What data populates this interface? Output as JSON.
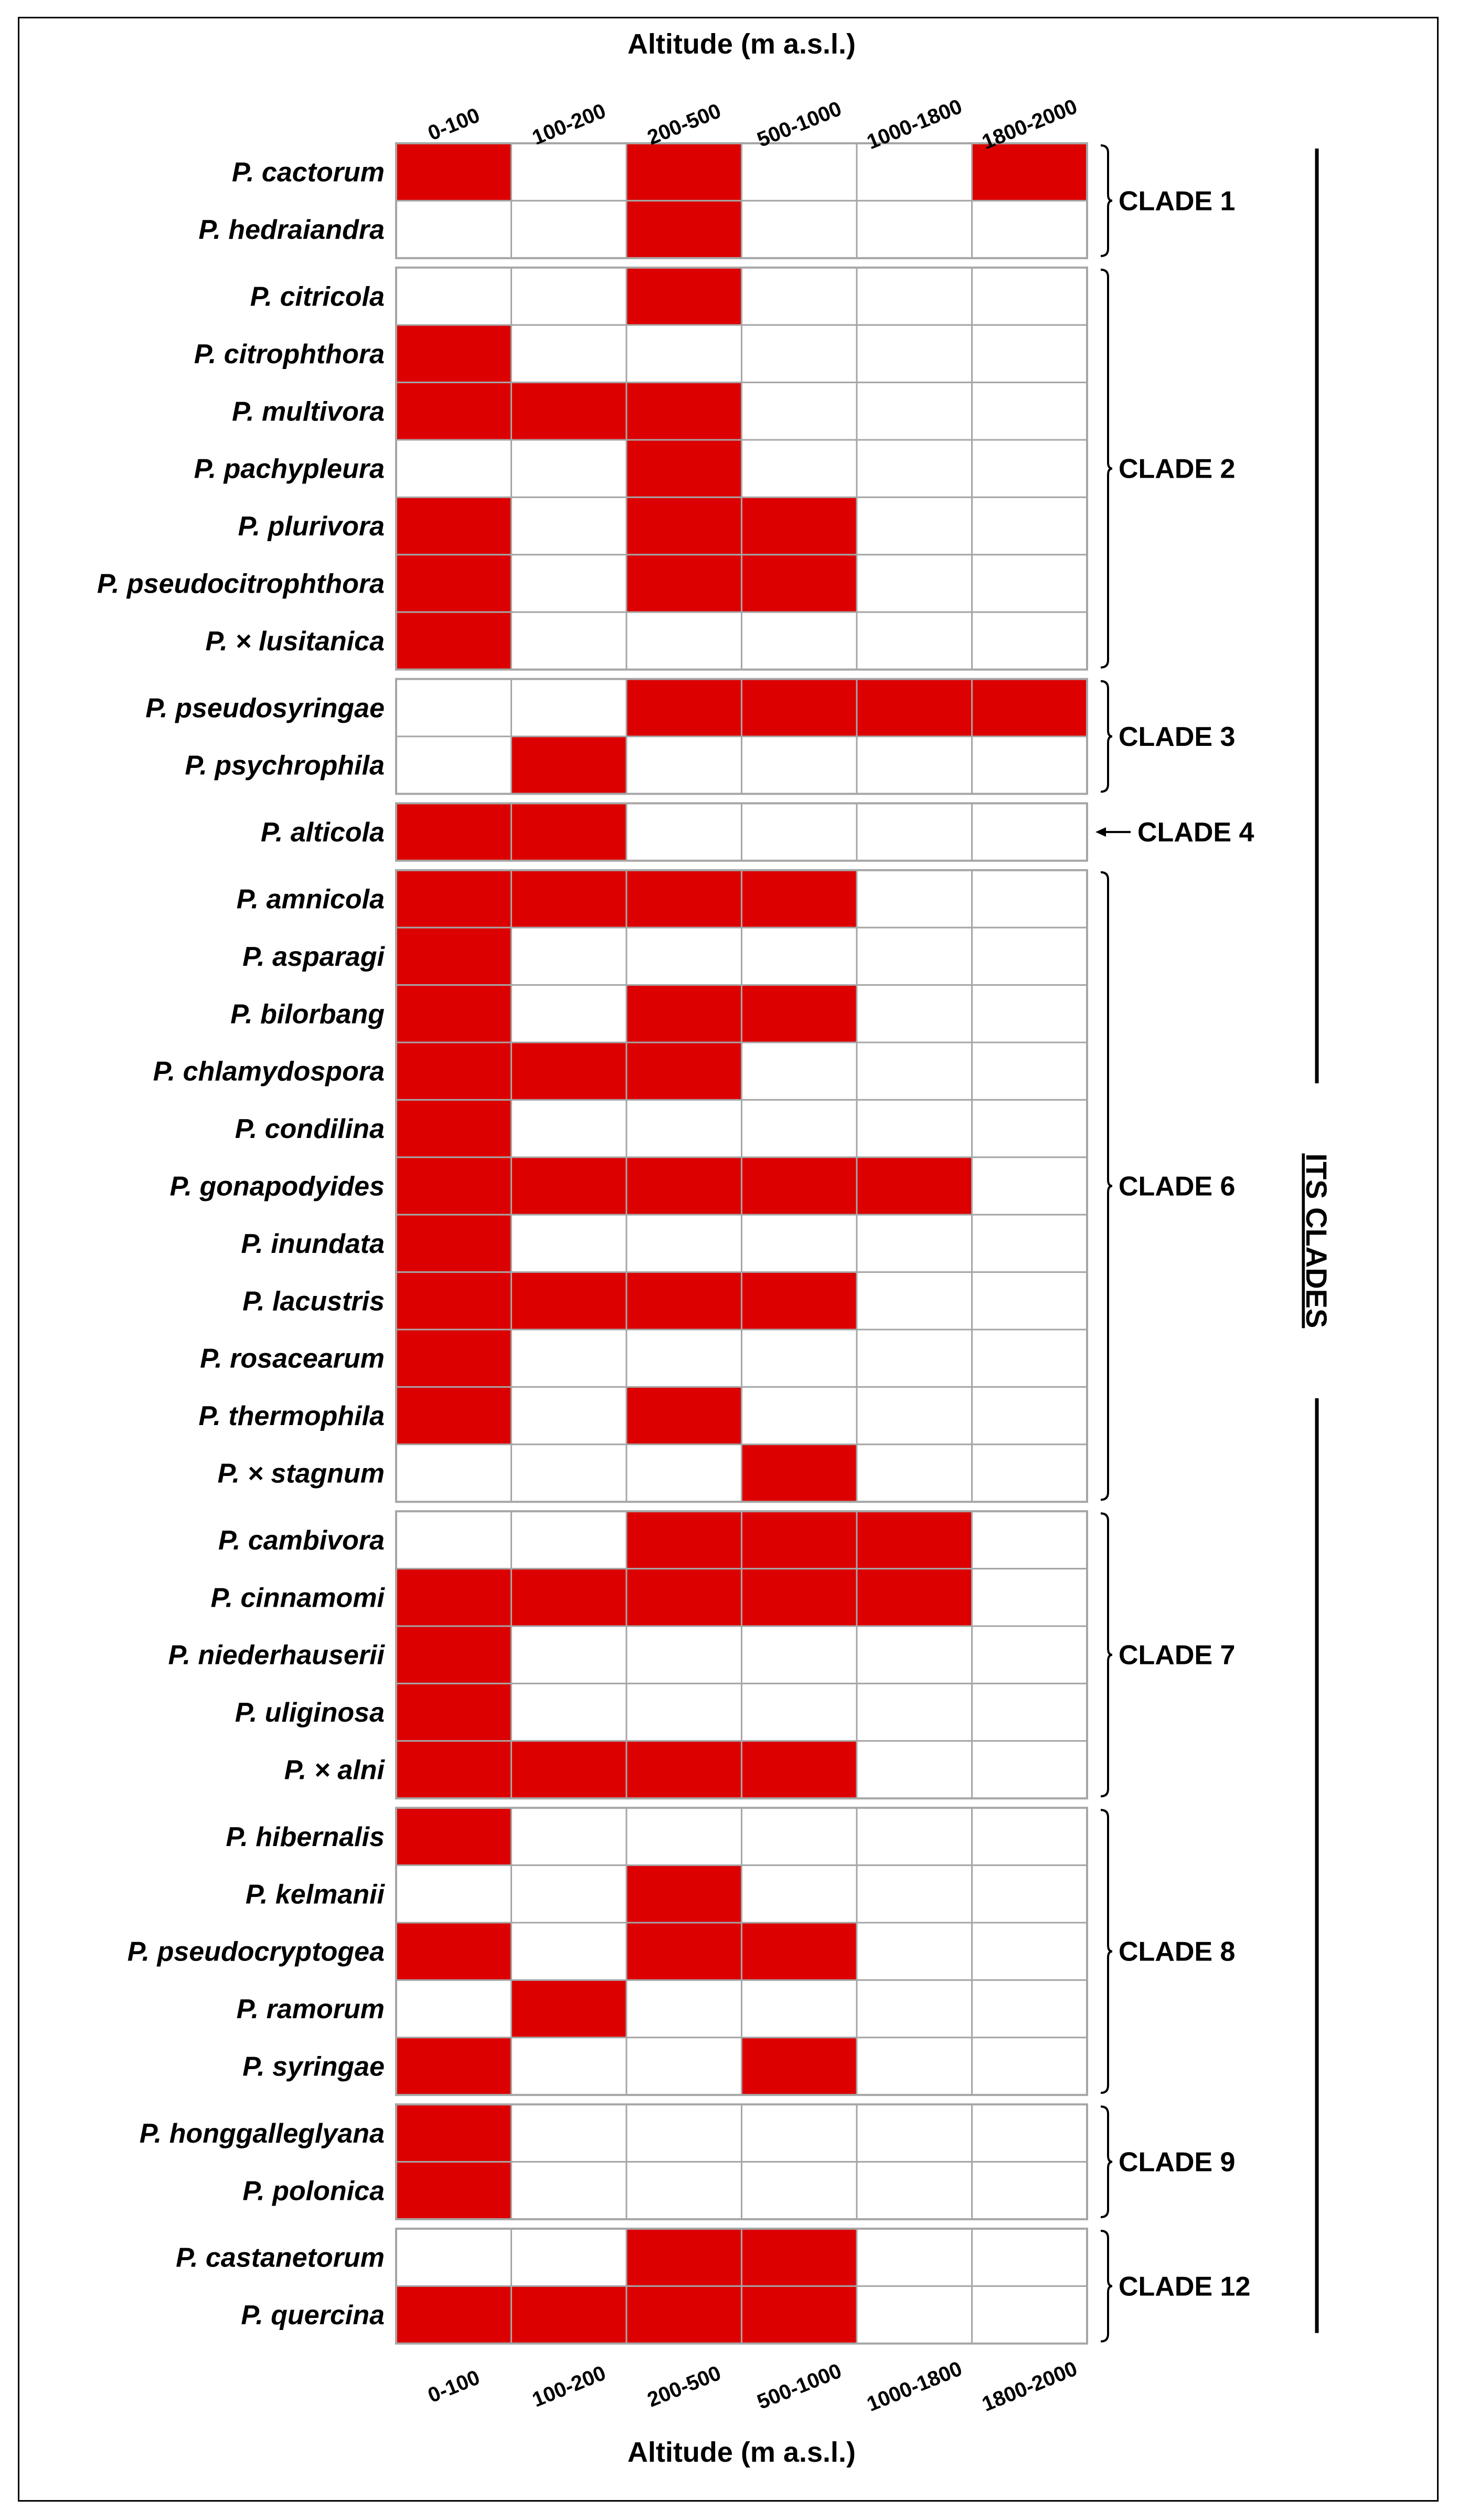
{
  "chart_data": {
    "type": "heatmap",
    "title": "",
    "xlabel": "Altitude (m a.s.l.)",
    "altitude_bins": [
      "0-100",
      "100-200",
      "200-500",
      "500-1000",
      "1000-1800",
      "1800-2000"
    ],
    "present_color": "#dd0000",
    "absent_color": "#ffffff",
    "grid_color": "#a6a6a6",
    "group_label": "ITS CLADES",
    "clades": [
      {
        "name": "CLADE 1",
        "species": [
          {
            "name": "P. cactorum",
            "presence": [
              1,
              0,
              1,
              0,
              0,
              1
            ]
          },
          {
            "name": "P. hedraiandra",
            "presence": [
              0,
              0,
              1,
              0,
              0,
              0
            ]
          }
        ]
      },
      {
        "name": "CLADE 2",
        "species": [
          {
            "name": "P. citricola",
            "presence": [
              0,
              0,
              1,
              0,
              0,
              0
            ]
          },
          {
            "name": "P. citrophthora",
            "presence": [
              1,
              0,
              0,
              0,
              0,
              0
            ]
          },
          {
            "name": "P. multivora",
            "presence": [
              1,
              1,
              1,
              0,
              0,
              0
            ]
          },
          {
            "name": "P. pachypleura",
            "presence": [
              0,
              0,
              1,
              0,
              0,
              0
            ]
          },
          {
            "name": "P. plurivora",
            "presence": [
              1,
              0,
              1,
              1,
              0,
              0
            ]
          },
          {
            "name": "P. pseudocitrophthora",
            "presence": [
              1,
              0,
              1,
              1,
              0,
              0
            ]
          },
          {
            "name": "P. × lusitanica",
            "presence": [
              1,
              0,
              0,
              0,
              0,
              0
            ]
          }
        ]
      },
      {
        "name": "CLADE 3",
        "species": [
          {
            "name": "P. pseudosyringae",
            "presence": [
              0,
              0,
              1,
              1,
              1,
              1
            ]
          },
          {
            "name": "P. psychrophila",
            "presence": [
              0,
              1,
              0,
              0,
              0,
              0
            ]
          }
        ]
      },
      {
        "name": "CLADE 4",
        "arrow": true,
        "species": [
          {
            "name": "P. alticola",
            "presence": [
              1,
              1,
              0,
              0,
              0,
              0
            ]
          }
        ]
      },
      {
        "name": "CLADE 6",
        "species": [
          {
            "name": "P. amnicola",
            "presence": [
              1,
              1,
              1,
              1,
              0,
              0
            ]
          },
          {
            "name": "P. asparagi",
            "presence": [
              1,
              0,
              0,
              0,
              0,
              0
            ]
          },
          {
            "name": "P. bilorbang",
            "presence": [
              1,
              0,
              1,
              1,
              0,
              0
            ]
          },
          {
            "name": "P. chlamydospora",
            "presence": [
              1,
              1,
              1,
              0,
              0,
              0
            ]
          },
          {
            "name": "P. condilina",
            "presence": [
              1,
              0,
              0,
              0,
              0,
              0
            ]
          },
          {
            "name": "P. gonapodyides",
            "presence": [
              1,
              1,
              1,
              1,
              1,
              0
            ]
          },
          {
            "name": "P. inundata",
            "presence": [
              1,
              0,
              0,
              0,
              0,
              0
            ]
          },
          {
            "name": "P. lacustris",
            "presence": [
              1,
              1,
              1,
              1,
              0,
              0
            ]
          },
          {
            "name": "P. rosacearum",
            "presence": [
              1,
              0,
              0,
              0,
              0,
              0
            ]
          },
          {
            "name": "P. thermophila",
            "presence": [
              1,
              0,
              1,
              0,
              0,
              0
            ]
          },
          {
            "name": "P. × stagnum",
            "presence": [
              0,
              0,
              0,
              1,
              0,
              0
            ]
          }
        ]
      },
      {
        "name": "CLADE 7",
        "species": [
          {
            "name": "P. cambivora",
            "presence": [
              0,
              0,
              1,
              1,
              1,
              0
            ]
          },
          {
            "name": "P. cinnamomi",
            "presence": [
              1,
              1,
              1,
              1,
              1,
              0
            ]
          },
          {
            "name": "P. niederhauserii",
            "presence": [
              1,
              0,
              0,
              0,
              0,
              0
            ]
          },
          {
            "name": "P. uliginosa",
            "presence": [
              1,
              0,
              0,
              0,
              0,
              0
            ]
          },
          {
            "name": "P. × alni",
            "presence": [
              1,
              1,
              1,
              1,
              0,
              0
            ]
          }
        ]
      },
      {
        "name": "CLADE 8",
        "species": [
          {
            "name": "P. hibernalis",
            "presence": [
              1,
              0,
              0,
              0,
              0,
              0
            ]
          },
          {
            "name": "P. kelmanii",
            "presence": [
              0,
              0,
              1,
              0,
              0,
              0
            ]
          },
          {
            "name": "P. pseudocryptogea",
            "presence": [
              1,
              0,
              1,
              1,
              0,
              0
            ]
          },
          {
            "name": "P. ramorum",
            "presence": [
              0,
              1,
              0,
              0,
              0,
              0
            ]
          },
          {
            "name": "P. syringae",
            "presence": [
              1,
              0,
              0,
              1,
              0,
              0
            ]
          }
        ]
      },
      {
        "name": "CLADE 9",
        "species": [
          {
            "name": "P. honggalleglyana",
            "presence": [
              1,
              0,
              0,
              0,
              0,
              0
            ]
          },
          {
            "name": "P. polonica",
            "presence": [
              1,
              0,
              0,
              0,
              0,
              0
            ]
          }
        ]
      },
      {
        "name": "CLADE 12",
        "species": [
          {
            "name": "P. castanetorum",
            "presence": [
              0,
              0,
              1,
              1,
              0,
              0
            ]
          },
          {
            "name": "P. quercina",
            "presence": [
              1,
              1,
              1,
              1,
              0,
              0
            ]
          }
        ]
      }
    ]
  }
}
